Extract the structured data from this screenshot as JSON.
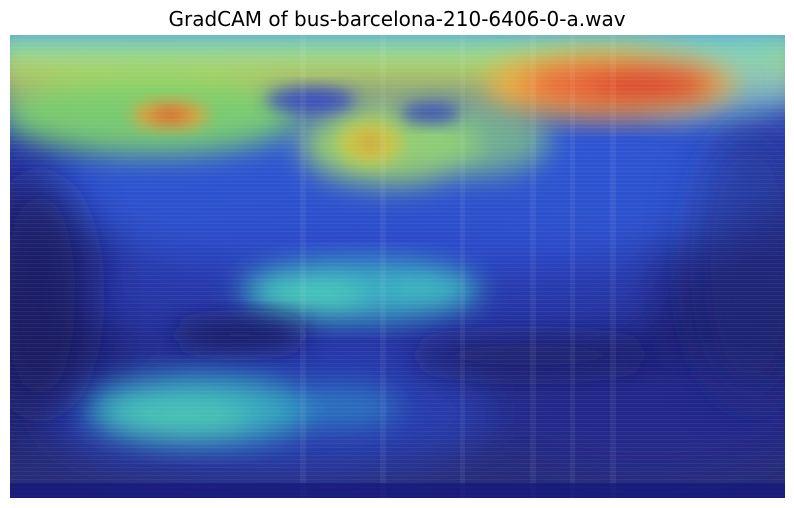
{
  "title": "GradCAM of bus-barcelona-210-6406-0-a.wav",
  "image": {
    "kind": "gradcam-heatmap-over-spectrogram",
    "colormap": "jet",
    "axes_visible": false
  }
}
